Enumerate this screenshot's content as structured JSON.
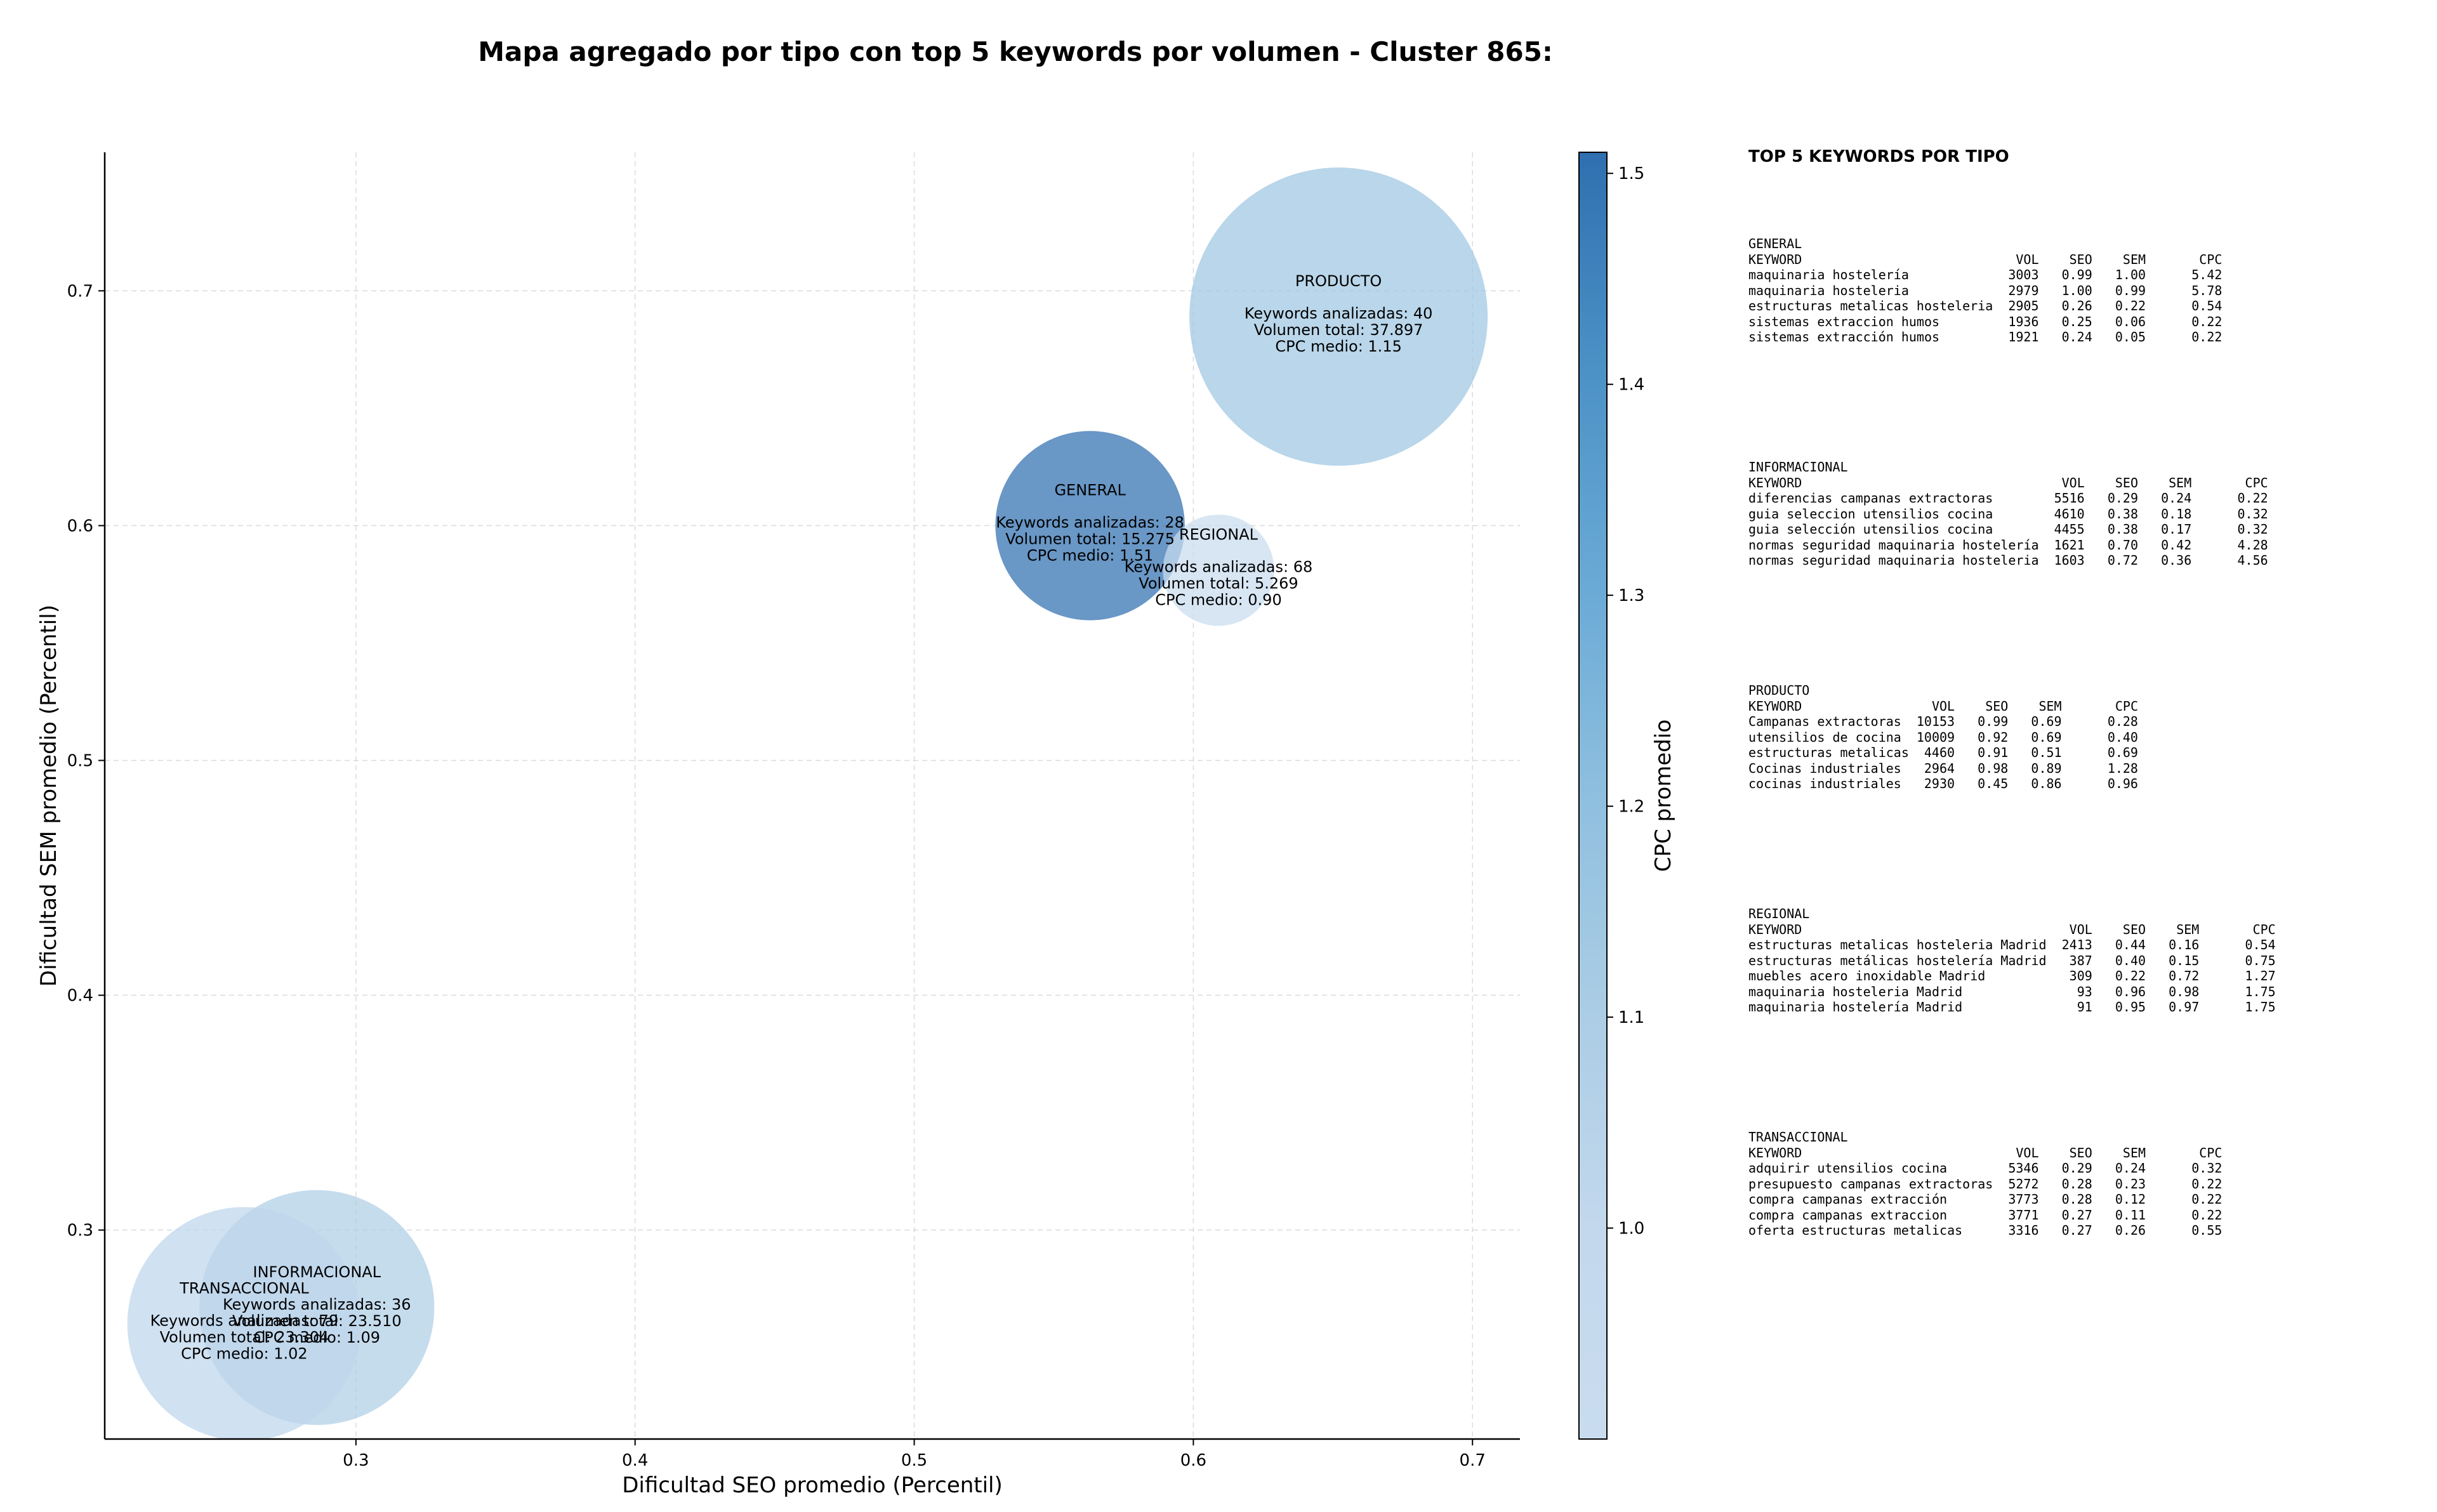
{
  "chart_data": {
    "type": "scatter",
    "title": "Mapa agregado por tipo con top 5 keywords por volumen - Cluster 865:",
    "xlabel": "Dificultad SEO promedio (Percentil)",
    "ylabel": "Dificultad SEM promedio (Percentil)",
    "xlim": [
      0.21,
      0.717
    ],
    "ylim": [
      0.211,
      0.759
    ],
    "xticks": [
      0.3,
      0.4,
      0.5,
      0.6,
      0.7
    ],
    "xtick_labels": [
      "0.3",
      "0.4",
      "0.5",
      "0.6",
      "0.7"
    ],
    "yticks": [
      0.3,
      0.4,
      0.5,
      0.6,
      0.7
    ],
    "ytick_labels": [
      "0.3",
      "0.4",
      "0.5",
      "0.6",
      "0.7"
    ],
    "grid": true,
    "colorbar": {
      "label": "CPC promedio",
      "min": 0.9,
      "max": 1.51,
      "ticks": [
        1.0,
        1.1,
        1.2,
        1.3,
        1.4,
        1.5
      ],
      "tick_labels": [
        "1.0",
        "1.1",
        "1.2",
        "1.3",
        "1.4",
        "1.5"
      ]
    },
    "points": [
      {
        "name": "GENERAL",
        "x": 0.563,
        "y": 0.6,
        "keywords": 28,
        "volume": 15275,
        "cpc": 1.51,
        "lines": [
          "Keywords analizadas: 28",
          "Volumen total: 15.275",
          "CPC medio: 1.51"
        ]
      },
      {
        "name": "PRODUCTO",
        "x": 0.652,
        "y": 0.689,
        "keywords": 40,
        "volume": 37897,
        "cpc": 1.15,
        "lines": [
          "Keywords analizadas: 40",
          "Volumen total: 37.897",
          "CPC medio: 1.15"
        ]
      },
      {
        "name": "REGIONAL",
        "x": 0.609,
        "y": 0.581,
        "keywords": 68,
        "volume": 5269,
        "cpc": 0.9,
        "lines": [
          "Keywords analizadas: 68",
          "Volumen total: 5.269",
          "CPC medio: 0.90"
        ]
      },
      {
        "name": "INFORMACIONAL",
        "x": 0.286,
        "y": 0.267,
        "keywords": 36,
        "volume": 23510,
        "cpc": 1.09,
        "lines": [
          "Keywords analizadas: 36",
          "Volumen total: 23.510",
          "CPC medio: 1.09"
        ]
      },
      {
        "name": "TRANSACCIONAL",
        "x": 0.26,
        "y": 0.26,
        "keywords": 79,
        "volume": 23304,
        "cpc": 1.02,
        "lines": [
          "Keywords analizadas: 79",
          "Volumen total: 23.304",
          "CPC medio: 1.02"
        ]
      }
    ]
  },
  "panel": {
    "title": "TOP 5 KEYWORDS POR TIPO",
    "header": {
      "keyword": "KEYWORD",
      "vol": "VOL",
      "seo": "SEO",
      "sem": "SEM",
      "cpc": "CPC"
    },
    "groups": [
      {
        "name": "GENERAL",
        "rows": [
          [
            "maquinaria hostelería",
            "3003",
            "0.99",
            "1.00",
            "5.42"
          ],
          [
            "maquinaria hosteleria",
            "2979",
            "1.00",
            "0.99",
            "5.78"
          ],
          [
            "estructuras metalicas hosteleria",
            "2905",
            "0.26",
            "0.22",
            "0.54"
          ],
          [
            "sistemas extraccion humos",
            "1936",
            "0.25",
            "0.06",
            "0.22"
          ],
          [
            "sistemas extracción humos",
            "1921",
            "0.24",
            "0.05",
            "0.22"
          ]
        ]
      },
      {
        "name": "INFORMACIONAL",
        "rows": [
          [
            "diferencias campanas extractoras",
            "5516",
            "0.29",
            "0.24",
            "0.22"
          ],
          [
            "guia seleccion utensilios cocina",
            "4610",
            "0.38",
            "0.18",
            "0.32"
          ],
          [
            "guia selección utensilios cocina",
            "4455",
            "0.38",
            "0.17",
            "0.32"
          ],
          [
            "normas seguridad maquinaria hostelería",
            "1621",
            "0.70",
            "0.42",
            "4.28"
          ],
          [
            "normas seguridad maquinaria hosteleria",
            "1603",
            "0.72",
            "0.36",
            "4.56"
          ]
        ]
      },
      {
        "name": "PRODUCTO",
        "rows": [
          [
            "Campanas extractoras",
            "10153",
            "0.99",
            "0.69",
            "0.28"
          ],
          [
            "utensilios de cocina",
            "10009",
            "0.92",
            "0.69",
            "0.40"
          ],
          [
            "estructuras metalicas",
            "4460",
            "0.91",
            "0.51",
            "0.69"
          ],
          [
            "Cocinas industriales",
            "2964",
            "0.98",
            "0.89",
            "1.28"
          ],
          [
            "cocinas industriales",
            "2930",
            "0.45",
            "0.86",
            "0.96"
          ]
        ]
      },
      {
        "name": "REGIONAL",
        "rows": [
          [
            "estructuras metalicas hosteleria Madrid",
            "2413",
            "0.44",
            "0.16",
            "0.54"
          ],
          [
            "estructuras metálicas hostelería Madrid",
            "387",
            "0.40",
            "0.15",
            "0.75"
          ],
          [
            "muebles acero inoxidable Madrid",
            "309",
            "0.22",
            "0.72",
            "1.27"
          ],
          [
            "maquinaria hosteleria Madrid",
            "93",
            "0.96",
            "0.98",
            "1.75"
          ],
          [
            "maquinaria hostelería Madrid",
            "91",
            "0.95",
            "0.97",
            "1.75"
          ]
        ]
      },
      {
        "name": "TRANSACCIONAL",
        "rows": [
          [
            "adquirir utensilios cocina",
            "5346",
            "0.29",
            "0.24",
            "0.32"
          ],
          [
            "presupuesto campanas extractoras",
            "5272",
            "0.28",
            "0.23",
            "0.22"
          ],
          [
            "compra campanas extracción",
            "3773",
            "0.28",
            "0.12",
            "0.22"
          ],
          [
            "compra campanas extraccion",
            "3771",
            "0.27",
            "0.11",
            "0.22"
          ],
          [
            "oferta estructuras metalicas",
            "3316",
            "0.27",
            "0.26",
            "0.55"
          ]
        ]
      }
    ]
  }
}
